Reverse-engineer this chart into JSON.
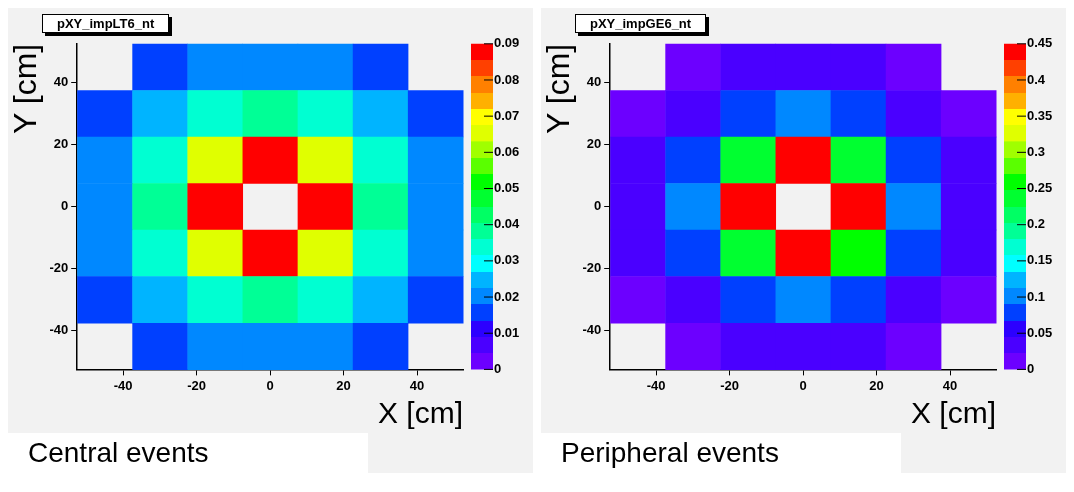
{
  "chart_data": [
    {
      "type": "heatmap",
      "title": "pXY_impLT6_nt",
      "xlabel": "X [cm]",
      "ylabel": "Y [cm]",
      "annotations": [
        "Central events"
      ],
      "xlim": [
        -52.5,
        52.5
      ],
      "xticks": [
        -40,
        -20,
        0,
        20,
        40
      ],
      "ylim": [
        -52.5,
        52.5
      ],
      "yticks": [
        -40,
        -20,
        0,
        20,
        40
      ],
      "cells": [
        [
          null,
          0.015,
          0.02,
          0.02,
          0.02,
          0.015,
          null
        ],
        [
          0.015,
          0.024,
          0.033,
          0.038,
          0.033,
          0.024,
          0.015
        ],
        [
          0.02,
          0.033,
          0.065,
          0.09,
          0.065,
          0.033,
          0.02
        ],
        [
          0.02,
          0.038,
          0.09,
          null,
          0.09,
          0.038,
          0.02
        ],
        [
          0.02,
          0.033,
          0.065,
          0.09,
          0.065,
          0.033,
          0.02
        ],
        [
          0.015,
          0.024,
          0.033,
          0.038,
          0.033,
          0.024,
          0.015
        ],
        [
          null,
          0.015,
          0.02,
          0.02,
          0.02,
          0.015,
          null
        ]
      ],
      "clim": [
        0,
        0.09
      ],
      "cticks": [
        0,
        0.01,
        0.02,
        0.03,
        0.04,
        0.05,
        0.06,
        0.07,
        0.08,
        0.09
      ]
    },
    {
      "type": "heatmap",
      "title": "pXY_impGE6_nt",
      "xlabel": "X [cm]",
      "ylabel": "Y [cm]",
      "annotations": [
        "Peripheral events"
      ],
      "xlim": [
        -52.5,
        52.5
      ],
      "xticks": [
        -40,
        -20,
        0,
        20,
        40
      ],
      "ylim": [
        -52.5,
        52.5
      ],
      "yticks": [
        -40,
        -20,
        0,
        20,
        40
      ],
      "cells": [
        [
          null,
          0.01,
          0.03,
          0.03,
          0.03,
          0.01,
          null
        ],
        [
          0.01,
          0.03,
          0.075,
          0.1,
          0.075,
          0.03,
          0.01
        ],
        [
          0.03,
          0.075,
          0.235,
          0.44,
          0.235,
          0.075,
          0.03
        ],
        [
          0.03,
          0.1,
          0.44,
          null,
          0.44,
          0.1,
          0.03
        ],
        [
          0.03,
          0.075,
          0.235,
          0.44,
          0.255,
          0.075,
          0.03
        ],
        [
          0.01,
          0.03,
          0.075,
          0.1,
          0.075,
          0.03,
          0.01
        ],
        [
          null,
          0.01,
          0.03,
          0.03,
          0.03,
          0.01,
          null
        ]
      ],
      "clim": [
        0,
        0.45
      ],
      "cticks": [
        0,
        0.05,
        0.1,
        0.15,
        0.2,
        0.25,
        0.3,
        0.35,
        0.4,
        0.45
      ]
    }
  ]
}
